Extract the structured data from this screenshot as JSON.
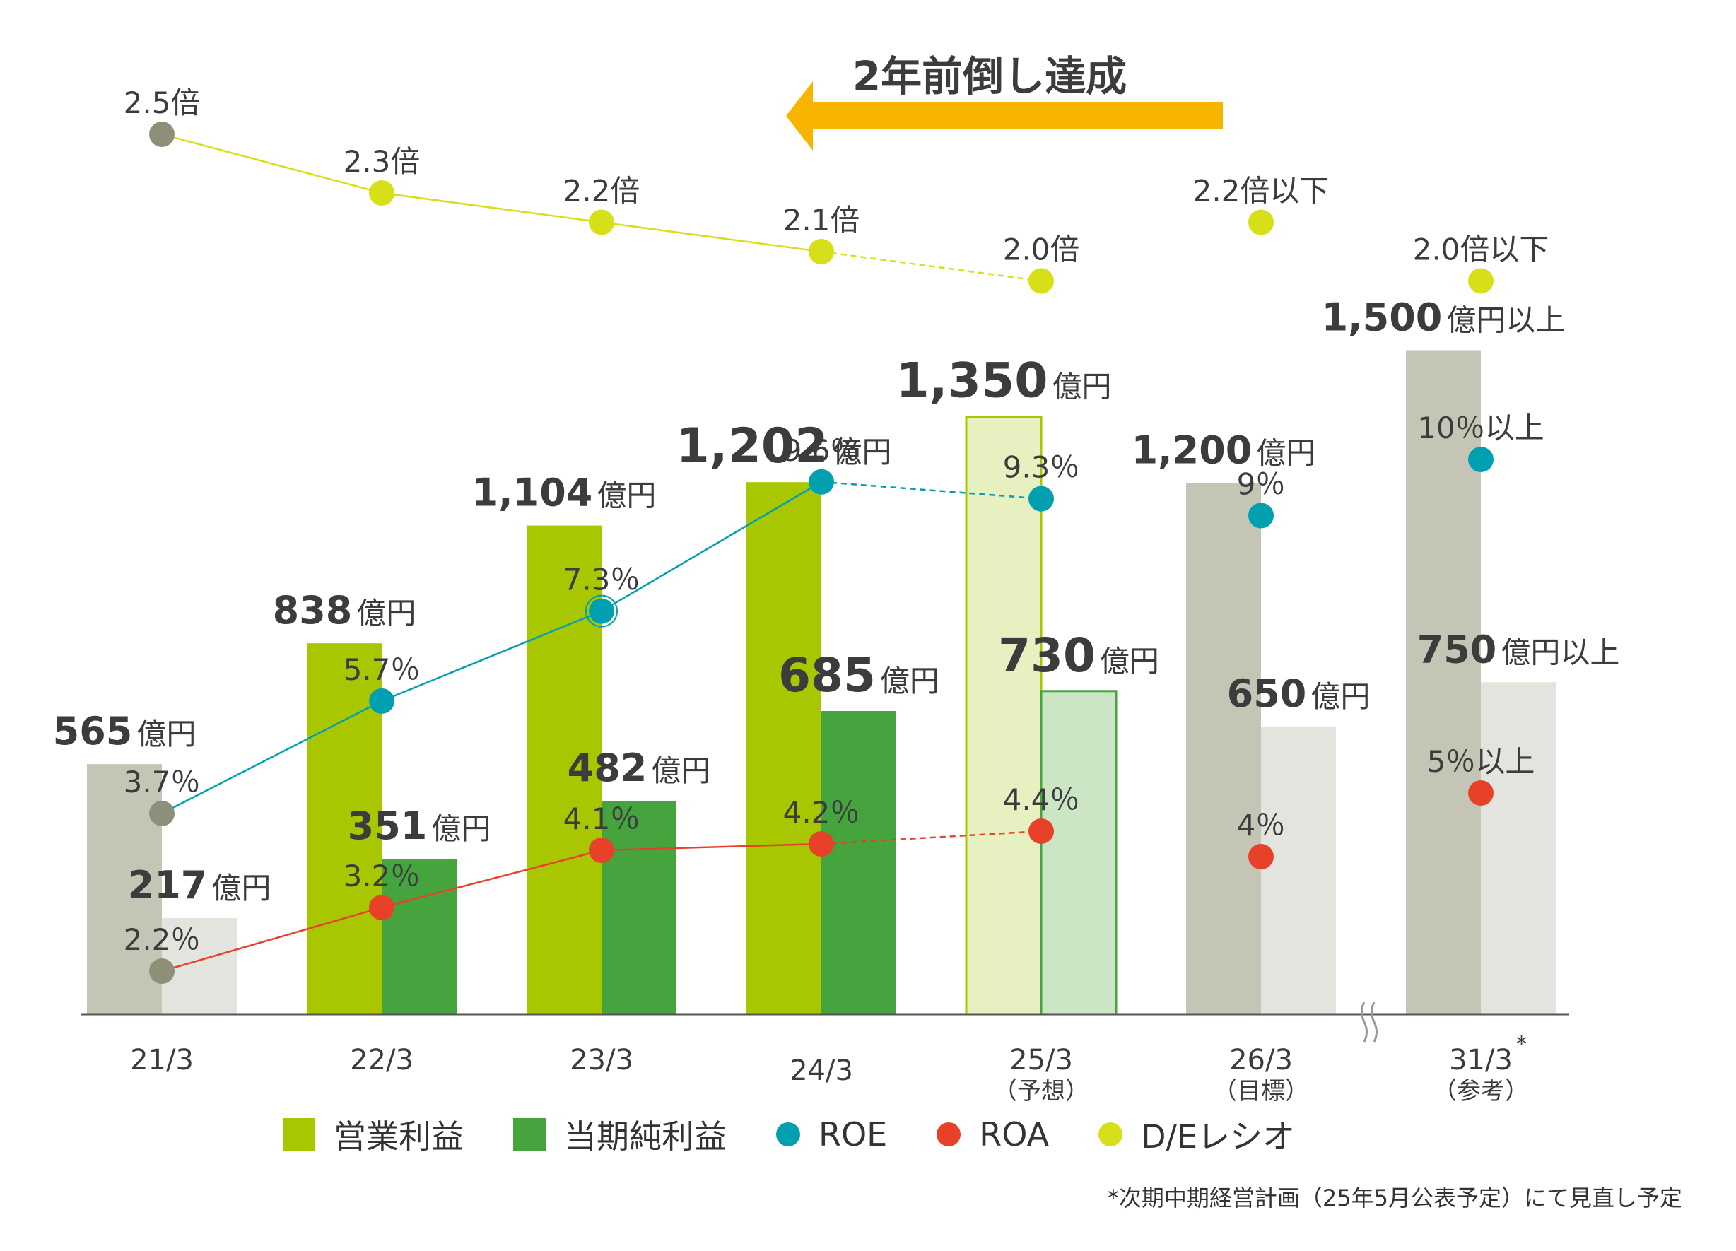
{
  "chart_data": {
    "type": "bar",
    "categories": [
      "21/3",
      "22/3",
      "23/3",
      "24/3",
      "25/3",
      "26/3",
      "31/3"
    ],
    "category_notes": [
      "",
      "",
      "",
      "",
      "（予想）",
      "（目標）",
      "（参考）"
    ],
    "asterisk_category": "31/3",
    "series": [
      {
        "name": "営業利益",
        "values": [
          565,
          838,
          1104,
          1202,
          1350,
          1200,
          1500
        ],
        "labels": [
          "565",
          "838",
          "1,104",
          "1,202",
          "1,350",
          "1,200",
          "1,500"
        ],
        "suffixes": [
          "億円",
          "億円",
          "億円",
          "億円",
          "億円",
          "億円",
          "億円以上"
        ],
        "color": "#a8c700"
      },
      {
        "name": "当期純利益",
        "values": [
          217,
          351,
          482,
          685,
          730,
          650,
          750
        ],
        "labels": [
          "217",
          "351",
          "482",
          "685",
          "730",
          "650",
          "750"
        ],
        "suffixes": [
          "億円",
          "億円",
          "億円",
          "億円",
          "億円",
          "億円",
          "億円以上"
        ],
        "color": "#45a43e"
      },
      {
        "name": "ROE",
        "values": [
          3.7,
          5.7,
          7.3,
          9.6,
          9.3,
          9,
          10
        ],
        "labels": [
          "3.7％",
          "5.7％",
          "7.3％",
          "9.6％",
          "9.3％",
          "9％",
          "10％以上"
        ],
        "color": "#00a0b0"
      },
      {
        "name": "ROA",
        "values": [
          2.2,
          3.2,
          4.1,
          4.2,
          4.4,
          4,
          5
        ],
        "labels": [
          "2.2％",
          "3.2％",
          "4.1％",
          "4.2％",
          "4.4％",
          "4％",
          "5％以上"
        ],
        "color": "#e8412a"
      },
      {
        "name": "D/Eレシオ",
        "values": [
          2.5,
          2.3,
          2.2,
          2.1,
          2.0,
          2.2,
          2.0
        ],
        "labels": [
          "2.5倍",
          "2.3倍",
          "2.2倍",
          "2.1倍",
          "2.0倍",
          "2.2倍以下",
          "2.0倍以下"
        ],
        "color": "#d7df18"
      }
    ],
    "actual_color_profit": "#a8c700",
    "actual_color_net": "#45a43e",
    "forecast_fill_profit": "#e6f0c0",
    "forecast_fill_net": "#cce5c4",
    "target_color_profit": "#c4c5b5",
    "target_color_net": "#e4e4de",
    "first_year_color_profit": "#c4c5b5",
    "first_year_color_net": "#e4e4de",
    "marker_gray": "#8e8f78",
    "ylim": [
      0,
      1600
    ],
    "annotation": "2年前倒し達成",
    "annotation_arrow_color": "#f7b500",
    "axis_break_between": [
      "26/3",
      "31/3"
    ]
  },
  "footnote": "*次期中期経営計画（25年5月公表予定）にて見直し予定"
}
